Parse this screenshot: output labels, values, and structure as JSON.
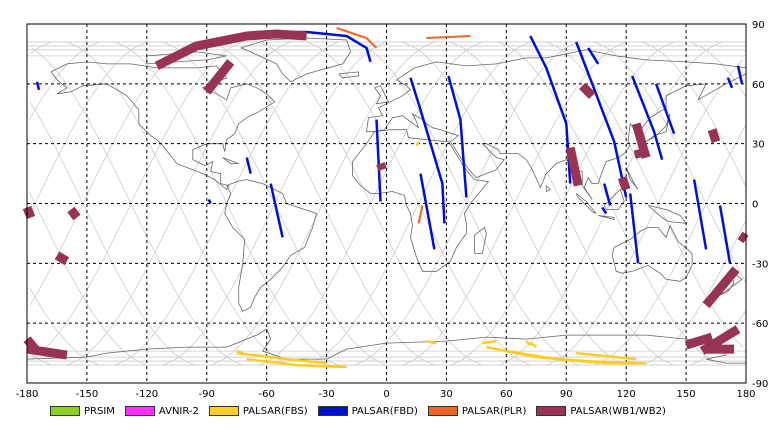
{
  "chart_data": {
    "type": "map",
    "projection": "equirectangular",
    "xlim": [
      -180,
      180
    ],
    "ylim": [
      -90,
      90
    ],
    "x_ticks": [
      -180,
      -150,
      -120,
      -90,
      -60,
      -30,
      0,
      30,
      60,
      90,
      120,
      150,
      180
    ],
    "y_ticks": [
      90,
      60,
      30,
      0,
      -30,
      -60,
      -90
    ],
    "grid": true,
    "legend_position": "bottom",
    "colors": {
      "PRSIM": "#8fd11f",
      "AVNIR-2": "#ff33ff",
      "PALSAR(FBS)": "#ffcc22",
      "PALSAR(FBD)": "#0010d0",
      "PALSAR(PLR)": "#ee6622",
      "PALSAR(WB1/WB2)": "#993355",
      "coastline": "#666666",
      "orbit_track": "#cccccc",
      "grid": "#000000"
    },
    "series": [
      {
        "name": "PRSIM",
        "swaths": []
      },
      {
        "name": "AVNIR-2",
        "swaths": []
      },
      {
        "name": "PALSAR(FBS)",
        "swaths": [
          [
            [
              -75,
              -75
            ],
            [
              -50,
              -78
            ],
            [
              -30,
              -80
            ]
          ],
          [
            [
              -70,
              -78
            ],
            [
              -45,
              -81
            ],
            [
              -20,
              -82
            ]
          ],
          [
            [
              50,
              -72
            ],
            [
              75,
              -77
            ],
            [
              100,
              -79
            ],
            [
              125,
              -80
            ]
          ],
          [
            [
              60,
              -74
            ],
            [
              85,
              -78
            ],
            [
              110,
              -80
            ],
            [
              130,
              -80
            ]
          ],
          [
            [
              95,
              -75
            ],
            [
              125,
              -78
            ]
          ],
          [
            [
              48,
              -70
            ],
            [
              55,
              -69
            ]
          ],
          [
            [
              72,
              -70
            ],
            [
              75,
              -72
            ]
          ],
          [
            [
              70,
              -69
            ],
            [
              72,
              -71
            ]
          ],
          [
            [
              -75,
              -74
            ],
            [
              -72,
              -75
            ]
          ],
          [
            [
              20,
              -69
            ],
            [
              25,
              -70
            ]
          ],
          [
            [
              15,
              29
            ],
            [
              16,
              31
            ]
          ]
        ]
      },
      {
        "name": "PALSAR(FBD)",
        "swaths": [
          [
            [
              -65,
              86
            ],
            [
              -40,
              86
            ],
            [
              -20,
              84
            ],
            [
              -10,
              78
            ],
            [
              -8,
              71
            ]
          ],
          [
            [
              -58,
              10
            ],
            [
              -52,
              -17
            ]
          ],
          [
            [
              -70,
              23
            ],
            [
              -68,
              15
            ]
          ],
          [
            [
              -175,
              61
            ],
            [
              -174,
              57
            ]
          ],
          [
            [
              -5,
              42
            ],
            [
              -3,
              1
            ]
          ],
          [
            [
              12,
              63
            ],
            [
              17,
              47
            ],
            [
              28,
              10
            ],
            [
              29,
              -10
            ]
          ],
          [
            [
              17,
              15
            ],
            [
              24,
              -23
            ]
          ],
          [
            [
              31,
              64
            ],
            [
              37,
              42
            ],
            [
              40,
              3
            ]
          ],
          [
            [
              72,
              84
            ],
            [
              80,
              68
            ],
            [
              90,
              40
            ],
            [
              92,
              10
            ]
          ],
          [
            [
              95,
              81
            ],
            [
              103,
              60
            ],
            [
              114,
              31
            ],
            [
              120,
              3
            ]
          ],
          [
            [
              101,
              78
            ],
            [
              106,
              70
            ]
          ],
          [
            [
              109,
              10
            ],
            [
              112,
              -1
            ]
          ],
          [
            [
              122,
              5
            ],
            [
              126,
              -30
            ]
          ],
          [
            [
              123,
              64
            ],
            [
              134,
              36
            ],
            [
              138,
              22
            ]
          ],
          [
            [
              135,
              60
            ],
            [
              144,
              35
            ]
          ],
          [
            [
              154,
              12
            ],
            [
              160,
              -23
            ]
          ],
          [
            [
              176,
              69
            ],
            [
              178,
              60
            ]
          ],
          [
            [
              167,
              -1
            ],
            [
              172,
              -30
            ]
          ],
          [
            [
              108,
              -2
            ],
            [
              110,
              -5
            ]
          ],
          [
            [
              171,
              63
            ],
            [
              173,
              58
            ]
          ],
          [
            [
              -89,
              2
            ],
            [
              -88,
              0
            ]
          ]
        ]
      },
      {
        "name": "PALSAR(PLR)",
        "swaths": [
          [
            [
              -25,
              88
            ],
            [
              -10,
              83
            ],
            [
              -5,
              78
            ]
          ],
          [
            [
              20,
              83
            ],
            [
              42,
              84
            ]
          ],
          [
            [
              18,
              -1
            ],
            [
              16,
              -10
            ]
          ]
        ]
      },
      {
        "name": "PALSAR(WB1/WB2)",
        "swaths": [
          [
            [
              -115,
              69
            ],
            [
              -95,
              79
            ],
            [
              -70,
              84
            ],
            [
              -55,
              85
            ],
            [
              -40,
              84
            ]
          ],
          [
            [
              -90,
              56
            ],
            [
              -78,
              71
            ]
          ],
          [
            [
              -180,
              -2
            ],
            [
              -178,
              -7
            ]
          ],
          [
            [
              -158,
              -3
            ],
            [
              -155,
              -7
            ]
          ],
          [
            [
              -165,
              -26
            ],
            [
              -160,
              -29
            ]
          ],
          [
            [
              -180,
              -68
            ],
            [
              -175,
              -74
            ]
          ],
          [
            [
              -180,
              -73
            ],
            [
              -160,
              -76
            ]
          ],
          [
            [
              -3,
              20
            ],
            [
              -2,
              17
            ]
          ],
          [
            [
              98,
              59
            ],
            [
              103,
              54
            ]
          ],
          [
            [
              92,
              28
            ],
            [
              96,
              9
            ]
          ],
          [
            [
              125,
              40
            ],
            [
              130,
              23
            ]
          ],
          [
            [
              126,
              27
            ],
            [
              127,
              23
            ]
          ],
          [
            [
              118,
              13
            ],
            [
              120,
              7
            ]
          ],
          [
            [
              163,
              37
            ],
            [
              165,
              31
            ]
          ],
          [
            [
              175,
              -33
            ],
            [
              160,
              -51
            ]
          ],
          [
            [
              176,
              -63
            ],
            [
              158,
              -74
            ]
          ],
          [
            [
              163,
              -67
            ],
            [
              150,
              -71
            ]
          ],
          [
            [
              174,
              -73
            ],
            [
              160,
              -73
            ]
          ],
          [
            [
              177,
              -16
            ],
            [
              180,
              -18
            ]
          ]
        ]
      }
    ]
  }
}
